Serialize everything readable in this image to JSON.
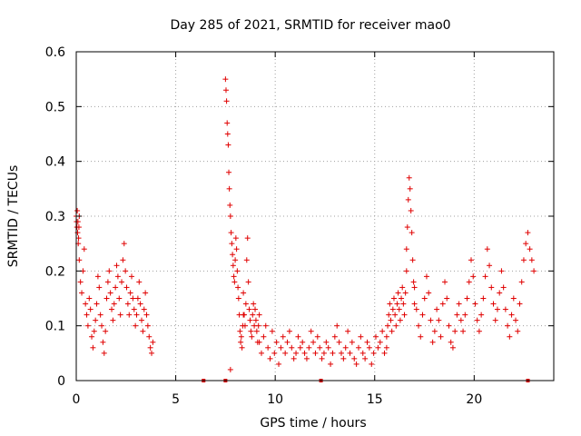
{
  "chart_data": {
    "type": "scatter",
    "title": "Day 285 of 2021, SRMTID for receiver mao0",
    "xlabel": "GPS time / hours",
    "ylabel": "SRMTID / TECUs",
    "xlim": [
      0,
      24
    ],
    "ylim": [
      0,
      0.6
    ],
    "xticks": [
      0,
      5,
      10,
      15,
      20
    ],
    "xtick_labels": [
      "0",
      "5",
      "10",
      "15",
      "20"
    ],
    "yticks": [
      0,
      0.1,
      0.2,
      0.3,
      0.4,
      0.5,
      0.6
    ],
    "ytick_labels": [
      "0",
      "0.1",
      "0.2",
      "0.3",
      "0.4",
      "0.5",
      "0.6"
    ],
    "grid": true,
    "marker": "+",
    "color": "#e00000",
    "series": [
      {
        "name": "mao0",
        "segments": [
          {
            "x_range": [
              0.0,
              0.15
            ],
            "values": [
              0.3,
              0.29,
              0.28,
              0.31,
              0.27,
              0.29,
              0.25,
              0.26,
              0.28,
              0.3
            ]
          },
          {
            "x_range": [
              0.15,
              3.85
            ],
            "values": [
              0.22,
              0.18,
              0.16,
              0.2,
              0.24,
              0.14,
              0.12,
              0.1,
              0.15,
              0.13,
              0.08,
              0.06,
              0.09,
              0.11,
              0.14,
              0.19,
              0.17,
              0.12,
              0.1,
              0.07,
              0.05,
              0.09,
              0.15,
              0.18,
              0.2,
              0.16,
              0.13,
              0.11,
              0.14,
              0.17,
              0.21,
              0.19,
              0.15,
              0.12,
              0.18,
              0.22,
              0.25,
              0.2,
              0.17,
              0.14,
              0.12,
              0.16,
              0.19,
              0.15,
              0.13,
              0.1,
              0.12,
              0.15,
              0.18,
              0.14,
              0.11,
              0.09,
              0.13,
              0.16,
              0.12,
              0.1,
              0.08,
              0.06,
              0.05,
              0.07
            ]
          },
          {
            "x_range": [
              7.5,
              7.75
            ],
            "values": [
              0.55,
              0.53,
              0.51,
              0.47,
              0.45,
              0.43,
              0.38,
              0.35,
              0.32,
              0.02
            ]
          },
          {
            "x_range": [
              7.75,
              8.4
            ],
            "values": [
              0.3,
              0.27,
              0.25,
              0.23,
              0.21,
              0.19,
              0.18,
              0.22,
              0.26,
              0.24,
              0.2,
              0.17,
              0.15,
              0.12,
              0.09,
              0.07,
              0.08,
              0.06,
              0.1,
              0.12
            ]
          },
          {
            "x_range": [
              8.4,
              9.2
            ],
            "values": [
              0.16,
              0.12,
              0.1,
              0.14,
              0.22,
              0.26,
              0.18,
              0.13,
              0.11,
              0.09,
              0.08,
              0.12,
              0.14,
              0.1,
              0.13,
              0.11,
              0.09,
              0.07,
              0.1,
              0.12
            ]
          },
          {
            "x_range": [
              9.2,
              15.6
            ],
            "values": [
              0.07,
              0.05,
              0.08,
              0.1,
              0.06,
              0.04,
              0.09,
              0.05,
              0.07,
              0.03,
              0.06,
              0.08,
              0.05,
              0.07,
              0.09,
              0.06,
              0.04,
              0.05,
              0.08,
              0.06,
              0.07,
              0.05,
              0.04,
              0.06,
              0.09,
              0.07,
              0.05,
              0.08,
              0.06,
              0.04,
              0.05,
              0.07,
              0.06,
              0.03,
              0.05,
              0.08,
              0.1,
              0.07,
              0.05,
              0.04,
              0.06,
              0.09,
              0.05,
              0.07,
              0.04,
              0.03,
              0.06,
              0.08,
              0.05,
              0.04,
              0.07,
              0.06,
              0.03,
              0.05,
              0.08,
              0.06,
              0.07,
              0.09,
              0.05,
              0.06
            ]
          },
          {
            "x_range": [
              15.6,
              16.6
            ],
            "values": [
              0.08,
              0.1,
              0.12,
              0.14,
              0.11,
              0.09,
              0.13,
              0.15,
              0.12,
              0.1,
              0.14,
              0.16,
              0.13,
              0.11,
              0.15,
              0.17,
              0.14,
              0.12,
              0.16,
              0.2
            ]
          },
          {
            "x_range": [
              16.6,
              17.0
            ],
            "values": [
              0.24,
              0.28,
              0.33,
              0.37,
              0.35,
              0.31,
              0.27,
              0.22,
              0.18,
              0.14
            ]
          },
          {
            "x_range": [
              17.0,
              23.0
            ],
            "values": [
              0.17,
              0.13,
              0.1,
              0.08,
              0.12,
              0.15,
              0.19,
              0.16,
              0.11,
              0.07,
              0.09,
              0.13,
              0.11,
              0.08,
              0.14,
              0.18,
              0.15,
              0.1,
              0.07,
              0.06,
              0.09,
              0.12,
              0.14,
              0.11,
              0.09,
              0.12,
              0.15,
              0.18,
              0.22,
              0.19,
              0.14,
              0.11,
              0.09,
              0.12,
              0.15,
              0.19,
              0.24,
              0.21,
              0.17,
              0.14,
              0.11,
              0.13,
              0.16,
              0.2,
              0.17,
              0.13,
              0.1,
              0.08,
              0.12,
              0.15,
              0.11,
              0.09,
              0.14,
              0.18,
              0.22,
              0.25,
              0.27,
              0.24,
              0.22,
              0.2
            ]
          }
        ]
      }
    ],
    "zero_markers": [
      6.4,
      7.5,
      12.3,
      22.7
    ]
  }
}
